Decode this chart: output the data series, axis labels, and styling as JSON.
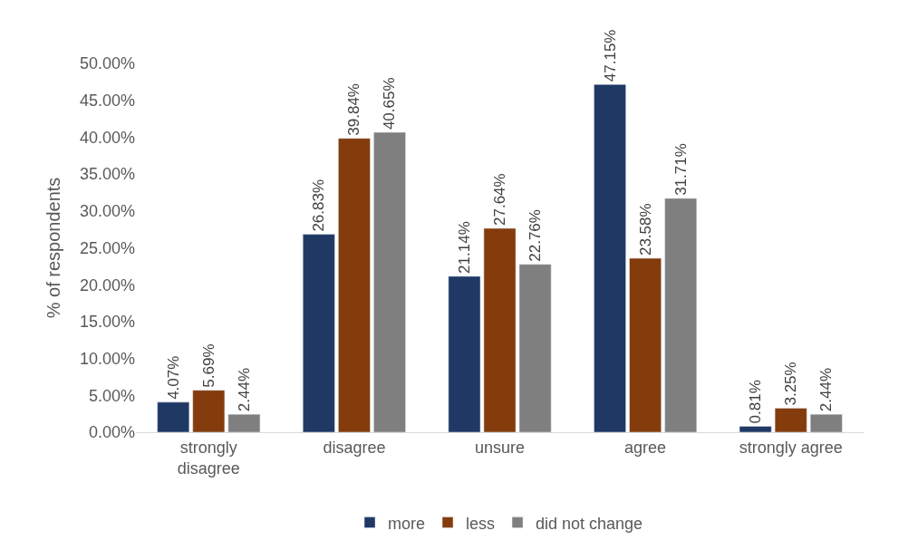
{
  "chart_data": {
    "type": "bar",
    "ylabel": "% of respondents",
    "categories": [
      "strongly\ndisagree",
      "disagree",
      "unsure",
      "agree",
      "strongly agree"
    ],
    "series": [
      {
        "name": "more",
        "color": "#203864",
        "values": [
          4.07,
          26.83,
          21.14,
          47.15,
          0.81
        ],
        "value_labels": [
          "4.07%",
          "26.83%",
          "21.14%",
          "47.15%",
          "0.81%"
        ]
      },
      {
        "name": "less",
        "color": "#843c0c",
        "values": [
          5.69,
          39.84,
          27.64,
          23.58,
          3.25
        ],
        "value_labels": [
          "5.69%",
          "39.84%",
          "27.64%",
          "23.58%",
          "3.25%"
        ]
      },
      {
        "name": "did not change",
        "color": "#7f7f7f",
        "values": [
          2.44,
          40.65,
          22.76,
          31.71,
          2.44
        ],
        "value_labels": [
          "2.44%",
          "40.65%",
          "22.76%",
          "31.71%",
          "2.44%"
        ]
      }
    ],
    "ylim": [
      0,
      50
    ],
    "yticks": [
      {
        "value": 0,
        "label": "0.00%"
      },
      {
        "value": 5,
        "label": "5.00%"
      },
      {
        "value": 10,
        "label": "10.00%"
      },
      {
        "value": 15,
        "label": "15.00%"
      },
      {
        "value": 20,
        "label": "20.00%"
      },
      {
        "value": 25,
        "label": "25.00%"
      },
      {
        "value": 30,
        "label": "30.00%"
      },
      {
        "value": 35,
        "label": "35.00%"
      },
      {
        "value": 40,
        "label": "40.00%"
      },
      {
        "value": 45,
        "label": "45.00%"
      },
      {
        "value": 50,
        "label": "50.00%"
      }
    ],
    "legend": "bottom"
  }
}
